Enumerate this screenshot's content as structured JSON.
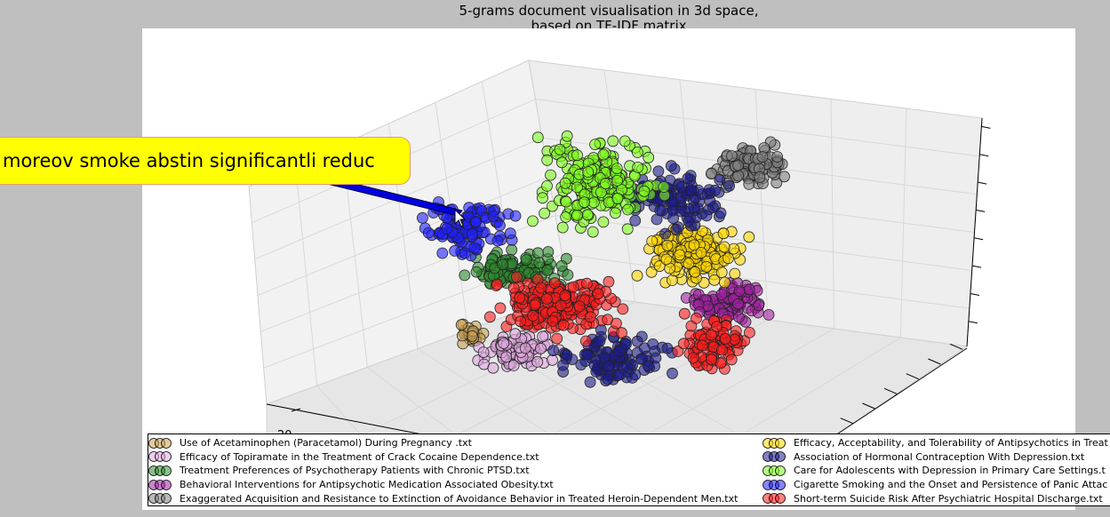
{
  "title_lines": [
    "5-grams document visualisation in 3d space,",
    "based on TF-IDF matrix"
  ],
  "tooltip_text": "moreov smoke abstin significantli reduc",
  "chart_data": {
    "type": "scatter",
    "projection": "3d",
    "title": "5-grams document visualisation in 3d space,\nbased on TF-IDF matrix",
    "x_tick_labels": [
      "20"
    ],
    "grid": true,
    "legend_position": "bottom",
    "series": [
      {
        "name": "Use of Acetaminophen (Paracetamol) During Pregnancy .txt",
        "color": "#c8a050"
      },
      {
        "name": "Efficacy of Topiramate in the Treatment of Crack Cocaine Dependence.txt",
        "color": "#e0a8e0"
      },
      {
        "name": "Treatment Preferences of Psychotherapy Patients with Chronic PTSD.txt",
        "color": "#2e8b2e"
      },
      {
        "name": "Behavioral Interventions for Antipsychotic Medication Associated Obesity.txt",
        "color": "#a020a0"
      },
      {
        "name": "Exaggerated Acquisition and Resistance to Extinction of Avoidance Behavior in Treated Heroin-Dependent Men.txt",
        "color": "#808080"
      },
      {
        "name": "Efficacy, Acceptability, and Tolerability of Antipsychotics in Treat",
        "color": "#ffd700"
      },
      {
        "name": "Association of Hormonal Contraception With Depression.txt",
        "color": "#1c1c8c"
      },
      {
        "name": "Care for Adolescents with Depression in Primary Care Settings.t",
        "color": "#80ff20"
      },
      {
        "name": "Cigarette Smoking and the Onset and Persistence of Panic Attac",
        "color": "#2020ff"
      },
      {
        "name": "Short-term Suicide Risk After Psychiatric Hospital Discharge.txt",
        "color": "#ff1c1c"
      }
    ]
  }
}
